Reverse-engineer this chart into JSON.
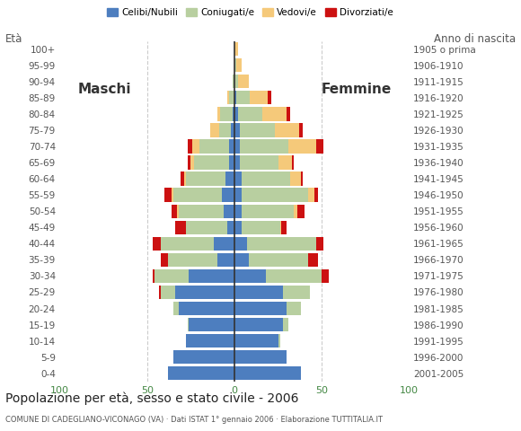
{
  "age_groups": [
    "0-4",
    "5-9",
    "10-14",
    "15-19",
    "20-24",
    "25-29",
    "30-34",
    "35-39",
    "40-44",
    "45-49",
    "50-54",
    "55-59",
    "60-64",
    "65-69",
    "70-74",
    "75-79",
    "80-84",
    "85-89",
    "90-94",
    "95-99",
    "100+"
  ],
  "birth_years": [
    "2001-2005",
    "1996-2000",
    "1991-1995",
    "1986-1990",
    "1981-1985",
    "1976-1980",
    "1971-1975",
    "1966-1970",
    "1961-1965",
    "1956-1960",
    "1951-1955",
    "1946-1950",
    "1941-1945",
    "1936-1940",
    "1931-1935",
    "1926-1930",
    "1921-1925",
    "1916-1920",
    "1911-1915",
    "1906-1910",
    "1905 o prima"
  ],
  "colors": {
    "celibe": "#4d7ebf",
    "coniugato": "#b8cfa0",
    "vedovo": "#f5c97a",
    "divorziato": "#cc1111"
  },
  "males": {
    "celibe": [
      38,
      35,
      28,
      26,
      32,
      34,
      26,
      10,
      12,
      4,
      6,
      7,
      5,
      3,
      3,
      2,
      1,
      0,
      0,
      0,
      0
    ],
    "coniugato": [
      0,
      0,
      0,
      1,
      3,
      8,
      20,
      28,
      30,
      24,
      26,
      28,
      23,
      20,
      17,
      7,
      7,
      3,
      1,
      0,
      0
    ],
    "vedovo": [
      0,
      0,
      0,
      0,
      0,
      0,
      0,
      0,
      0,
      0,
      1,
      1,
      1,
      2,
      4,
      5,
      2,
      1,
      0,
      0,
      0
    ],
    "divorziato": [
      0,
      0,
      0,
      0,
      0,
      1,
      1,
      4,
      5,
      6,
      3,
      4,
      2,
      2,
      3,
      0,
      0,
      0,
      0,
      0,
      0
    ]
  },
  "females": {
    "celibe": [
      38,
      30,
      25,
      28,
      30,
      28,
      18,
      8,
      7,
      4,
      4,
      4,
      4,
      3,
      3,
      3,
      2,
      1,
      0,
      0,
      0
    ],
    "coniugato": [
      0,
      0,
      1,
      3,
      8,
      15,
      32,
      34,
      40,
      22,
      30,
      38,
      28,
      22,
      28,
      20,
      14,
      8,
      2,
      1,
      0
    ],
    "vedovo": [
      0,
      0,
      0,
      0,
      0,
      0,
      0,
      0,
      0,
      1,
      2,
      4,
      6,
      8,
      16,
      14,
      14,
      10,
      6,
      3,
      2
    ],
    "divorziato": [
      0,
      0,
      0,
      0,
      0,
      0,
      4,
      6,
      4,
      3,
      4,
      2,
      1,
      1,
      4,
      2,
      2,
      2,
      0,
      0,
      0
    ]
  },
  "title": "Popolazione per età, sesso e stato civile - 2006",
  "subtitle": "COMUNE DI CADEGLIANO-VICONAGO (VA) · Dati ISTAT 1° gennaio 2006 · Elaborazione TUTTITALIA.IT",
  "ylabel_left": "Età",
  "ylabel_right": "Anno di nascita",
  "xlim": 100,
  "legend_labels": [
    "Celibi/Nubili",
    "Coniugati/e",
    "Vedovi/e",
    "Divorziati/e"
  ],
  "background_color": "#ffffff",
  "grid_color": "#cccccc"
}
